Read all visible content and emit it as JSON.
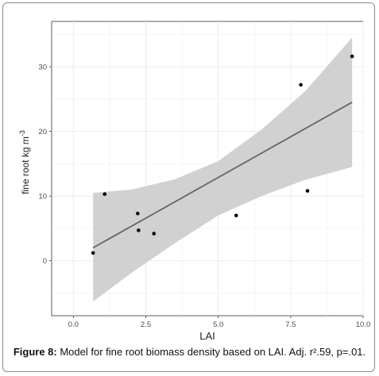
{
  "chart_data": {
    "type": "scatter",
    "xlabel": "LAI",
    "ylabel": "fine root kg m",
    "ylabel_superscript": "-3",
    "xlim": [
      -0.75,
      10.0
    ],
    "ylim": [
      -8.5,
      37.0
    ],
    "x_ticks": [
      0.0,
      2.5,
      5.0,
      7.5,
      10.0
    ],
    "x_tick_labels": [
      "0.0",
      "2.5",
      "5.0",
      "7.5",
      "10.0"
    ],
    "y_ticks": [
      0,
      10,
      20,
      30
    ],
    "y_tick_labels": [
      "0",
      "10",
      "20",
      "30"
    ],
    "grid": true,
    "points": [
      {
        "x": 0.68,
        "y": 1.2
      },
      {
        "x": 1.08,
        "y": 10.3
      },
      {
        "x": 2.22,
        "y": 7.3
      },
      {
        "x": 2.25,
        "y": 4.7
      },
      {
        "x": 2.78,
        "y": 4.2
      },
      {
        "x": 5.62,
        "y": 7.0
      },
      {
        "x": 7.85,
        "y": 27.2
      },
      {
        "x": 8.08,
        "y": 10.8
      },
      {
        "x": 9.62,
        "y": 31.6
      }
    ],
    "fit_line": {
      "x": [
        0.68,
        9.62
      ],
      "y": [
        2.0,
        24.5
      ]
    },
    "confidence_band": {
      "x": [
        0.68,
        2.0,
        3.5,
        5.0,
        6.5,
        8.0,
        9.62
      ],
      "upper": [
        10.5,
        11.0,
        12.6,
        15.4,
        20.3,
        26.2,
        34.5
      ],
      "lower": [
        -6.3,
        -1.9,
        2.7,
        7.0,
        10.0,
        12.5,
        14.5
      ]
    },
    "colors": {
      "panel": "#ebebeb",
      "grid_major": "#ebebeb",
      "band": "#c9c9c9",
      "line": "#666666",
      "point": "#000000"
    }
  },
  "caption": {
    "label": "Figure 8:",
    "text": " Model for fine root biomass density based on LAI. Adj. r².59, p=.01."
  }
}
